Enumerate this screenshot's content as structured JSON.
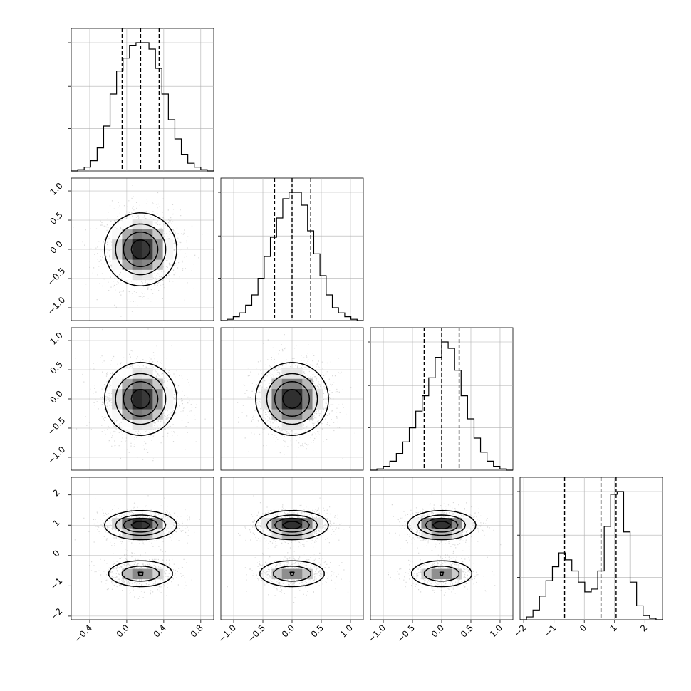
{
  "chart_data": {
    "type": "corner",
    "n_params": 4,
    "grid": true,
    "colors": {
      "line": "#000000",
      "grid": "#b0b0b0",
      "density_dark": "#000000",
      "density_light": "#ffffff"
    },
    "tick_values": [
      [
        -0.4,
        0.0,
        0.4,
        0.8
      ],
      [
        -1.0,
        -0.5,
        0.0,
        0.5,
        1.0
      ],
      [
        -1.0,
        -0.5,
        0.0,
        0.5,
        1.0
      ],
      [
        -2,
        -1,
        0,
        1,
        2
      ]
    ],
    "tick_labels": [
      [
        "−0.4",
        "0.0",
        "0.4",
        "0.8"
      ],
      [
        "−1.0",
        "−0.5",
        "0.0",
        "0.5",
        "1.0"
      ],
      [
        "−1.0",
        "−0.5",
        "0.0",
        "0.5",
        "1.0"
      ],
      [
        "−2",
        "−1",
        "0",
        "1",
        "2"
      ]
    ],
    "ranges": [
      [
        -0.6,
        0.94
      ],
      [
        -1.22,
        1.22
      ],
      [
        -1.22,
        1.22
      ],
      [
        -2.12,
        2.58
      ]
    ],
    "histograms": [
      {
        "edges_min": -0.6,
        "edges_max": 0.94,
        "counts": [
          0,
          1,
          3,
          8,
          18,
          35,
          60,
          78,
          88,
          98,
          100,
          100,
          95,
          80,
          60,
          40,
          25,
          13,
          6,
          3,
          1,
          0
        ],
        "quantiles": [
          -0.05,
          0.15,
          0.35
        ]
      },
      {
        "edges_min": -1.22,
        "edges_max": 1.22,
        "counts": [
          0,
          1,
          3,
          6,
          12,
          20,
          33,
          50,
          65,
          80,
          95,
          100,
          100,
          90,
          70,
          52,
          35,
          20,
          10,
          6,
          3,
          1,
          0
        ],
        "quantiles": [
          -0.3,
          0.0,
          0.32
        ]
      },
      {
        "edges_min": -1.22,
        "edges_max": 1.22,
        "counts": [
          0,
          1,
          3,
          7,
          13,
          22,
          33,
          46,
          58,
          72,
          88,
          100,
          95,
          78,
          58,
          40,
          25,
          14,
          7,
          3,
          1,
          0
        ],
        "quantiles": [
          -0.3,
          0.0,
          0.3
        ]
      },
      {
        "edges_min": -2.12,
        "edges_max": 2.58,
        "counts": [
          0,
          2,
          7,
          17,
          28,
          38,
          48,
          43,
          35,
          27,
          20,
          22,
          35,
          67,
          90,
          92,
          63,
          27,
          10,
          3,
          1,
          0
        ],
        "quantiles": [
          -0.65,
          0.55,
          1.05
        ]
      }
    ],
    "pairs": [
      {
        "row": 1,
        "col": 0,
        "centers": [
          [
            0.15,
            0.0
          ]
        ],
        "sx": 0.2,
        "sy": 0.32
      },
      {
        "row": 2,
        "col": 0,
        "centers": [
          [
            0.15,
            0.0
          ]
        ],
        "sx": 0.2,
        "sy": 0.32
      },
      {
        "row": 2,
        "col": 1,
        "centers": [
          [
            0.0,
            0.0
          ]
        ],
        "sx": 0.32,
        "sy": 0.32
      },
      {
        "row": 3,
        "col": 0,
        "centers": [
          [
            0.15,
            1.0
          ],
          [
            0.15,
            -0.6
          ]
        ],
        "weights": [
          0.6,
          0.4
        ],
        "sx": 0.2,
        "sy": 0.35
      },
      {
        "row": 3,
        "col": 1,
        "centers": [
          [
            0.0,
            1.0
          ],
          [
            0.0,
            -0.6
          ]
        ],
        "weights": [
          0.6,
          0.4
        ],
        "sx": 0.32,
        "sy": 0.35
      },
      {
        "row": 3,
        "col": 2,
        "centers": [
          [
            0.0,
            1.0
          ],
          [
            0.0,
            -0.6
          ]
        ],
        "weights": [
          0.6,
          0.4
        ],
        "sx": 0.3,
        "sy": 0.35
      }
    ]
  }
}
